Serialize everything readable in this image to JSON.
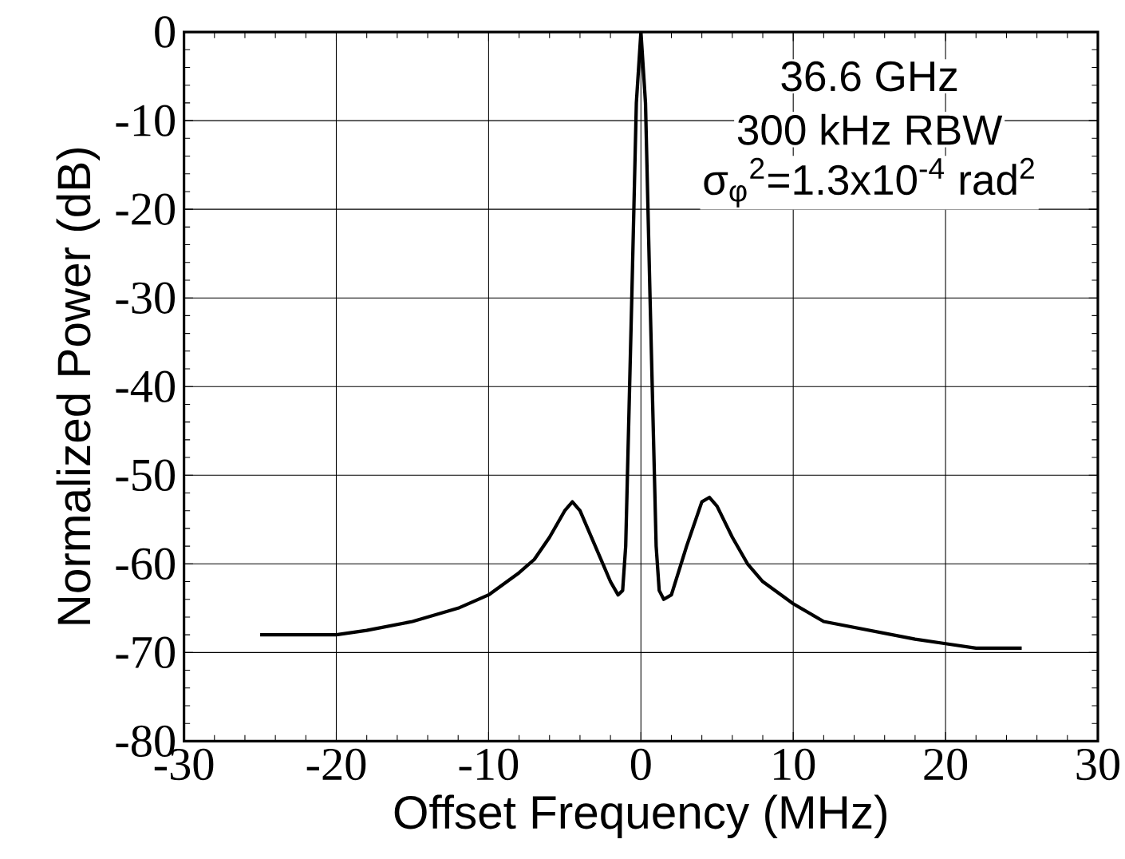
{
  "chart_data": {
    "type": "line",
    "xlabel": "Offset Frequency (MHz)",
    "ylabel": "Normalized Power (dB)",
    "annotations": [
      "36.6 GHz",
      "300 kHz RBW",
      "σ$_{φ}$$^{2}$=1.3x10$^{-4}$ rad$^{2}$"
    ],
    "x": [
      -25,
      -22,
      -20,
      -18,
      -15,
      -12,
      -10,
      -8,
      -7,
      -6,
      -5,
      -4.5,
      -4,
      -3,
      -2,
      -1.5,
      -1.2,
      -1,
      -0.6,
      -0.3,
      0,
      0.3,
      0.6,
      1,
      1.2,
      1.5,
      2,
      3,
      4,
      4.5,
      5,
      6,
      7,
      8,
      10,
      12,
      15,
      18,
      20,
      22,
      25
    ],
    "series": [
      {
        "color": "#000000",
        "values": [
          -68,
          -68,
          -68,
          -67.5,
          -66.5,
          -65,
          -63.5,
          -61,
          -59.5,
          -57,
          -54,
          -53,
          -54,
          -58,
          -62,
          -63.5,
          -63,
          -58,
          -30,
          -8,
          0,
          -8,
          -30,
          -58,
          -63,
          -64,
          -63.5,
          -58,
          -53,
          -52.5,
          -53.5,
          -57,
          -60,
          -62,
          -64.5,
          -66.5,
          -67.5,
          -68.5,
          -69,
          -69.5,
          -69.5
        ]
      }
    ],
    "xlim": [
      -30,
      30
    ],
    "ylim": [
      -80,
      0
    ],
    "xticks": [
      -30,
      -20,
      -10,
      0,
      10,
      20,
      30
    ],
    "yticks": [
      -80,
      -70,
      -60,
      -50,
      -40,
      -30,
      -20,
      -10,
      0
    ],
    "grid": true,
    "marker": "none",
    "line_style": "solid"
  }
}
